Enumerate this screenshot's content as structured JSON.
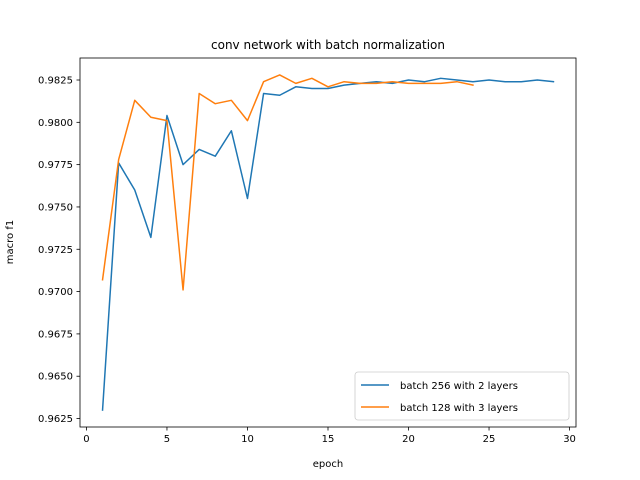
{
  "chart_data": {
    "type": "line",
    "title": "conv network with batch normalization",
    "xlabel": "epoch",
    "ylabel": "macro f1",
    "xlim": [
      -0.4,
      30.4
    ],
    "ylim": [
      0.962,
      0.9838
    ],
    "xticks": [
      0,
      5,
      10,
      15,
      20,
      25,
      30
    ],
    "yticks": [
      0.9625,
      0.965,
      0.9675,
      0.97,
      0.9725,
      0.975,
      0.9775,
      0.98,
      0.9825
    ],
    "grid": false,
    "legend_position": "lower-right",
    "series": [
      {
        "name": "batch 256 with 2 layers",
        "color": "#1f77b4",
        "x": [
          1,
          2,
          3,
          4,
          5,
          6,
          7,
          8,
          9,
          10,
          11,
          12,
          13,
          14,
          15,
          16,
          17,
          18,
          19,
          20,
          21,
          22,
          23,
          24,
          25,
          26,
          27,
          28,
          29
        ],
        "y": [
          0.963,
          0.9776,
          0.976,
          0.9732,
          0.9804,
          0.9775,
          0.9784,
          0.978,
          0.9795,
          0.9755,
          0.9817,
          0.9816,
          0.9821,
          0.982,
          0.982,
          0.9822,
          0.9823,
          0.9824,
          0.9823,
          0.9825,
          0.9824,
          0.9826,
          0.9825,
          0.9824,
          0.9825,
          0.9824,
          0.9824,
          0.9825,
          0.9824
        ]
      },
      {
        "name": "batch 128 with 3 layers",
        "color": "#ff7f0e",
        "x": [
          1,
          2,
          3,
          4,
          5,
          6,
          7,
          8,
          9,
          10,
          11,
          12,
          13,
          14,
          15,
          16,
          17,
          18,
          19,
          20,
          21,
          22,
          23,
          24
        ],
        "y": [
          0.9707,
          0.9778,
          0.9813,
          0.9803,
          0.9801,
          0.9701,
          0.9817,
          0.9811,
          0.9813,
          0.9801,
          0.9824,
          0.9828,
          0.9823,
          0.9826,
          0.9821,
          0.9824,
          0.9823,
          0.9823,
          0.9824,
          0.9823,
          0.9823,
          0.9823,
          0.9824,
          0.9822
        ]
      }
    ]
  }
}
